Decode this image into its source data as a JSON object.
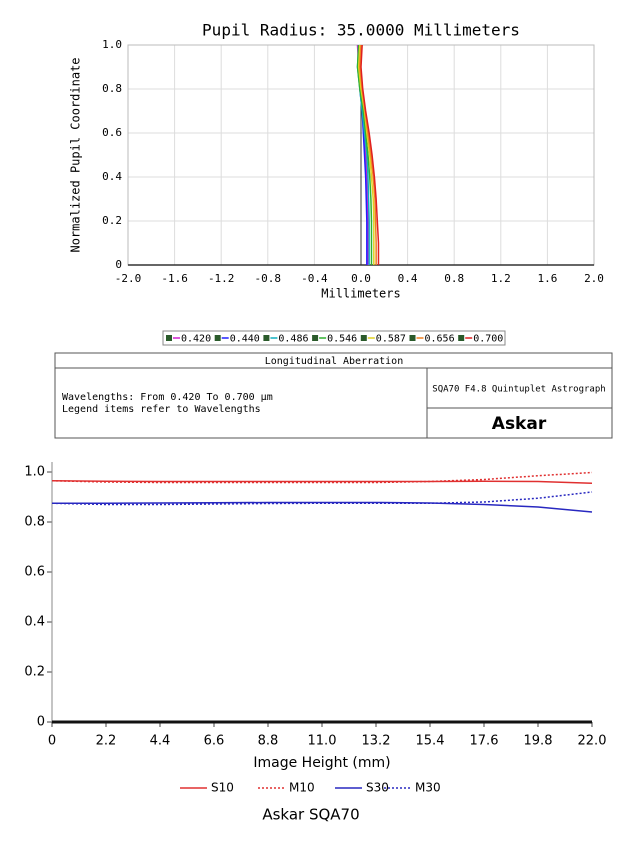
{
  "chart_data": [
    {
      "type": "line",
      "title": "Pupil Radius: 35.0000 Millimeters",
      "xlabel": "Millimeters",
      "ylabel": "Normalized Pupil Coordinate",
      "y": [
        0,
        0.1,
        0.2,
        0.3,
        0.4,
        0.5,
        0.6,
        0.7,
        0.8,
        0.9,
        1.0
      ],
      "series": [
        {
          "name": "0.420",
          "color": "#d020d0",
          "values": [
            0.06,
            0.06,
            0.06,
            0.055,
            0.05,
            0.04,
            0.03,
            0.02,
            0.0,
            -0.02,
            -0.03
          ]
        },
        {
          "name": "0.440",
          "color": "#2020ff",
          "values": [
            0.05,
            0.05,
            0.05,
            0.045,
            0.04,
            0.03,
            0.02,
            0.01,
            -0.01,
            -0.01,
            0.0
          ]
        },
        {
          "name": "0.486",
          "color": "#10b0c0",
          "values": [
            0.07,
            0.07,
            0.07,
            0.065,
            0.06,
            0.05,
            0.03,
            0.01,
            -0.01,
            -0.03,
            -0.02
          ]
        },
        {
          "name": "0.546",
          "color": "#30b030",
          "values": [
            0.09,
            0.09,
            0.09,
            0.085,
            0.075,
            0.06,
            0.04,
            0.02,
            -0.01,
            -0.03,
            -0.02
          ]
        },
        {
          "name": "0.587",
          "color": "#e0d020",
          "values": [
            0.11,
            0.11,
            0.11,
            0.105,
            0.09,
            0.075,
            0.05,
            0.03,
            0.0,
            -0.02,
            -0.01
          ]
        },
        {
          "name": "0.656",
          "color": "#f08020",
          "values": [
            0.13,
            0.13,
            0.125,
            0.12,
            0.105,
            0.085,
            0.06,
            0.035,
            0.01,
            -0.01,
            0.0
          ]
        },
        {
          "name": "0.700",
          "color": "#e02020",
          "values": [
            0.15,
            0.15,
            0.14,
            0.13,
            0.115,
            0.095,
            0.07,
            0.04,
            0.015,
            0.0,
            0.01
          ]
        }
      ],
      "xlim": [
        -2,
        2
      ],
      "xticks": [
        {
          "value": -2,
          "label": "-2.0"
        },
        -1.6,
        -1.2,
        -0.8,
        -0.4,
        {
          "value": 0,
          "label": "0.0"
        },
        0.4,
        0.8,
        1.2,
        1.6,
        {
          "value": 2,
          "label": "2.0"
        }
      ],
      "ylim": [
        0,
        1
      ],
      "yticks": [
        0,
        0.2,
        0.4,
        0.6,
        0.8,
        {
          "value": 1,
          "label": "1.0"
        }
      ],
      "grid": true
    },
    {
      "type": "line",
      "xlabel": "Image Height (mm)",
      "caption": "Askar SQA70",
      "x": [
        0,
        2.2,
        4.4,
        6.6,
        8.8,
        11,
        13.2,
        15.4,
        17.6,
        19.8,
        22
      ],
      "series": [
        {
          "name": "S10",
          "color": "#e03030",
          "dashed": false,
          "values": [
            0.965,
            0.963,
            0.962,
            0.962,
            0.962,
            0.962,
            0.962,
            0.962,
            0.963,
            0.962,
            0.955
          ]
        },
        {
          "name": "M10",
          "color": "#e03030",
          "dashed": true,
          "values": [
            0.965,
            0.96,
            0.958,
            0.958,
            0.958,
            0.958,
            0.958,
            0.962,
            0.97,
            0.985,
            0.998
          ]
        },
        {
          "name": "S30",
          "color": "#2828c0",
          "dashed": false,
          "values": [
            0.875,
            0.875,
            0.876,
            0.877,
            0.878,
            0.878,
            0.878,
            0.876,
            0.87,
            0.86,
            0.84
          ]
        },
        {
          "name": "M30",
          "color": "#2828c0",
          "dashed": true,
          "values": [
            0.875,
            0.87,
            0.87,
            0.872,
            0.874,
            0.875,
            0.875,
            0.875,
            0.88,
            0.895,
            0.92
          ]
        }
      ],
      "xlim": [
        0,
        22
      ],
      "xticks": [
        0,
        2.2,
        4.4,
        6.6,
        8.8,
        {
          "value": 11,
          "label": "11.0"
        },
        13.2,
        15.4,
        17.6,
        19.8,
        {
          "value": 22,
          "label": "22.0"
        }
      ],
      "ylim": [
        0,
        1
      ],
      "yticks": [
        0,
        0.2,
        0.4,
        0.6,
        0.8,
        {
          "value": 1,
          "label": "1.0"
        }
      ],
      "grid": false
    }
  ],
  "info": {
    "header": "Longitudinal Aberration",
    "lines": [
      "Wavelengths: From 0.420 To 0.700 µm",
      "Legend items refer to Wavelengths"
    ],
    "product": "SQA70 F4.8 Quintuplet Astrograph",
    "logo": "Askar"
  }
}
